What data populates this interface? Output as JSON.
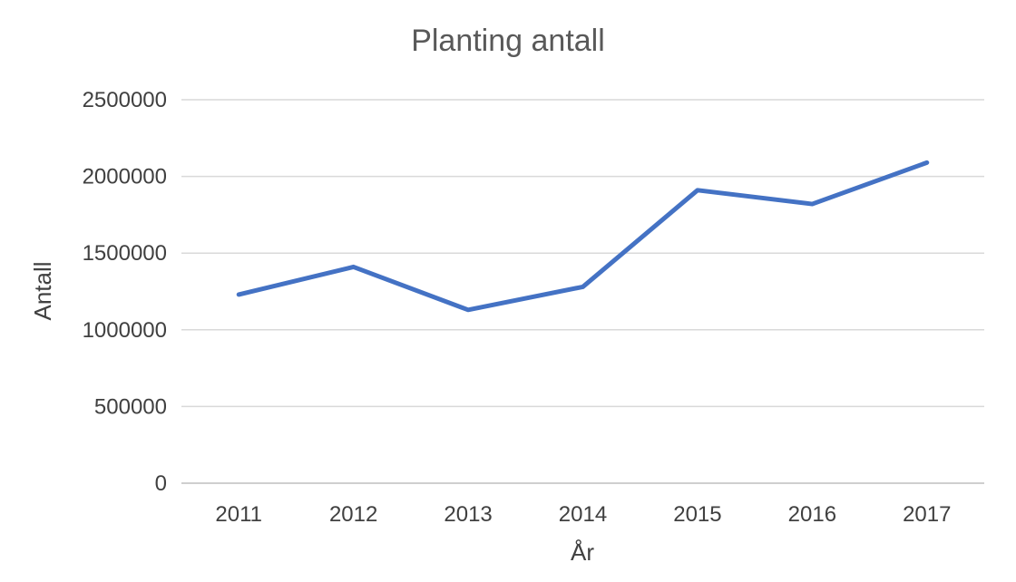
{
  "chart_data": {
    "type": "line",
    "title": "Planting antall",
    "xlabel": "År",
    "ylabel": "Antall",
    "x": [
      "2011",
      "2012",
      "2013",
      "2014",
      "2015",
      "2016",
      "2017"
    ],
    "values": [
      1230000,
      1410000,
      1130000,
      1280000,
      1910000,
      1820000,
      2090000
    ],
    "ylim": [
      0,
      2500000
    ],
    "yticks": [
      0,
      500000,
      1000000,
      1500000,
      2000000,
      2500000
    ],
    "grid": true,
    "legend": false,
    "line_color": "#4472C4",
    "title_color": "#595959",
    "axis_text_color": "#404040",
    "gridline_color": "#D9D9D9",
    "axis_line_color": "#BFBFBF"
  }
}
